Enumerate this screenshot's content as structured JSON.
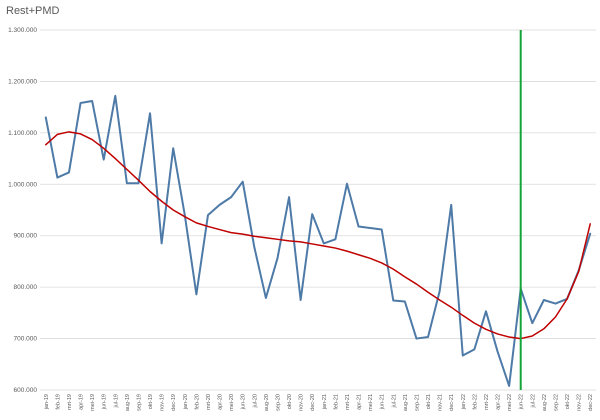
{
  "chart_data": {
    "type": "line",
    "title": "Rest+PMD",
    "xlabel": "",
    "ylabel": "",
    "ylim": [
      600000,
      1300000
    ],
    "yticks": [
      600000,
      700000,
      800000,
      900000,
      1000000,
      1100000,
      1200000,
      1300000
    ],
    "ytick_labels": [
      "600.000",
      "700.000",
      "800.000",
      "900.000",
      "1.000.000",
      "1.100.000",
      "1.200.000",
      "1.300.000"
    ],
    "grid": true,
    "categories": [
      "jan-19",
      "feb-19",
      "mrt-19",
      "apr-19",
      "mei-19",
      "jun-19",
      "jul-19",
      "aug-19",
      "sep-19",
      "okt-19",
      "nov-19",
      "dec-19",
      "jan-20",
      "feb-20",
      "mrt-20",
      "apr-20",
      "mei-20",
      "jun-20",
      "jul-20",
      "aug-20",
      "sep-20",
      "okt-20",
      "nov-20",
      "dec-20",
      "jan-21",
      "feb-21",
      "mrt-21",
      "apr-21",
      "mei-21",
      "jun-21",
      "jul-21",
      "aug-21",
      "sep-21",
      "okt-21",
      "nov-21",
      "dec-21",
      "jan-22",
      "feb-22",
      "mrt-22",
      "apr-22",
      "mei-22",
      "jun-22",
      "jul-22",
      "aug-22",
      "sep-22",
      "okt-22",
      "nov-22",
      "dec-22"
    ],
    "series": [
      {
        "color": "#4e7aa8",
        "values": [
          1130000,
          1013000,
          1023000,
          1158000,
          1162000,
          1048000,
          1172000,
          1002000,
          1002000,
          1138000,
          885000,
          1070000,
          940000,
          786000,
          940000,
          960000,
          975000,
          1005000,
          878000,
          779000,
          856000,
          975000,
          775000,
          942000,
          885000,
          893000,
          1001000,
          918000,
          915000,
          912000,
          774000,
          772000,
          700000,
          703000,
          792000,
          960000,
          667000,
          679000,
          753000,
          675000,
          608000,
          797000,
          730000,
          775000,
          768000,
          777000,
          832000,
          904000
        ]
      },
      {
        "color": "#c00000",
        "values": [
          1077000,
          1097000,
          1102000,
          1098000,
          1087000,
          1070000,
          1050000,
          1029000,
          1008000,
          986000,
          967000,
          950000,
          937000,
          925000,
          918000,
          912000,
          906000,
          903000,
          899000,
          896000,
          893000,
          890000,
          888000,
          884000,
          880000,
          876000,
          870000,
          863000,
          856000,
          847000,
          835000,
          820000,
          806000,
          790000,
          775000,
          761000,
          745000,
          730000,
          718000,
          709000,
          703000,
          700000,
          705000,
          719000,
          742000,
          777000,
          830000,
          923000
        ]
      }
    ],
    "vline": {
      "category": "jun-22",
      "color": "#13a538"
    }
  }
}
